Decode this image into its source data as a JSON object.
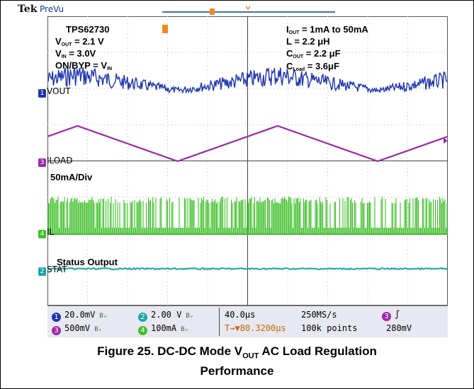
{
  "header": {
    "brand": "Tek",
    "mode": "PreVu"
  },
  "annotations": {
    "left": {
      "part": "TPS62730",
      "vout_label": "V",
      "vout_sub": "OUT",
      "vout_value": " = 2.1 V",
      "vin_label": "V",
      "vin_sub": "IN",
      "vin_value": " = 3.0V",
      "onbyp_label": "ON/BYP = V",
      "onbyp_sub": "IN"
    },
    "right": {
      "iout_label": "I",
      "iout_sub": "OUT",
      "iout_value": " = 1mA to 50mA",
      "l_value": "L = 2.2 μH",
      "cout_label": "C",
      "cout_sub": "OUT",
      "cout_value": " = 2.2 μF",
      "cload_label": "C",
      "cload_sub": "Load",
      "cload_value": " = 3.6μF"
    },
    "scale_note": "50mA/Div",
    "status_output": "Status Output"
  },
  "channels": [
    {
      "num": "1",
      "label": "VOUT",
      "color": "#1f35b0"
    },
    {
      "num": "3",
      "label": "ILOAD",
      "color": "#9a2aa8"
    },
    {
      "num": "4",
      "label": "IL",
      "color": "#3fbf2a"
    },
    {
      "num": "2",
      "label": "STAT",
      "color": "#19a7a7"
    }
  ],
  "status_bar": {
    "ch1": {
      "num": "1",
      "value": "20.0mV",
      "color": "#1f35b0"
    },
    "ch2": {
      "num": "2",
      "value": "2.00 V",
      "color": "#19a7a7"
    },
    "ch3": {
      "num": "3",
      "value": "500mV",
      "color": "#9a2aa8"
    },
    "ch4": {
      "num": "4",
      "value": "100mA",
      "color": "#3fbf2a"
    },
    "bw_symbol": "Bᵥ",
    "timebase": "40.0µs",
    "sample_rate": "250MS/s",
    "trigger_pos": "T→▼80.3200µs",
    "record_length": "100k points",
    "trigger_ch": "3",
    "trigger_slope": "ʃ",
    "trigger_level": "280mV"
  },
  "caption": {
    "line1_prefix": "Figure 25. DC-DC Mode V",
    "line1_sub": "OUT",
    "line1_suffix": " AC Load Regulation",
    "line2": "Performance"
  }
}
